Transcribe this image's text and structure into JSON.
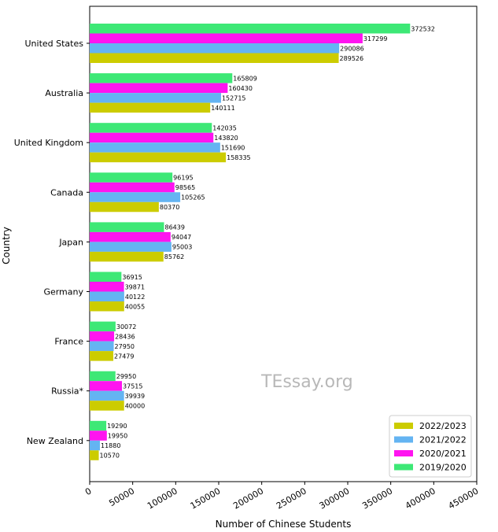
{
  "chart_data": {
    "type": "bar",
    "orientation": "horizontal",
    "categories": [
      "United States",
      "Australia",
      "United Kingdom",
      "Canada",
      "Japan",
      "Germany",
      "France",
      "Russia*",
      "New Zealand"
    ],
    "series": [
      {
        "name": "2019/2020",
        "color": "#3de876",
        "values": [
          372532,
          165809,
          142035,
          96195,
          86439,
          36915,
          30072,
          29950,
          19290
        ]
      },
      {
        "name": "2020/2021",
        "color": "#ff14f0",
        "values": [
          317299,
          160430,
          143820,
          98565,
          94047,
          39871,
          28436,
          37515,
          19950
        ]
      },
      {
        "name": "2021/2022",
        "color": "#64b4f2",
        "values": [
          290086,
          152715,
          151690,
          105265,
          95003,
          40122,
          27950,
          39939,
          11880
        ]
      },
      {
        "name": "2022/2023",
        "color": "#cccc00",
        "values": [
          289526,
          140111,
          158335,
          80370,
          85762,
          40055,
          27479,
          40000,
          10570
        ]
      }
    ],
    "legend_order": [
      "2022/2023",
      "2021/2022",
      "2020/2021",
      "2019/2020"
    ],
    "xlabel": "Number of Chinese Students",
    "ylabel": "Country",
    "xlim": [
      0,
      450000
    ],
    "xticks": [
      "0",
      "50000",
      "100000",
      "150000",
      "200000",
      "250000",
      "300000",
      "350000",
      "400000",
      "450000"
    ],
    "legend_position": "lower-right",
    "grid": false,
    "watermark": "TEssay.org"
  }
}
